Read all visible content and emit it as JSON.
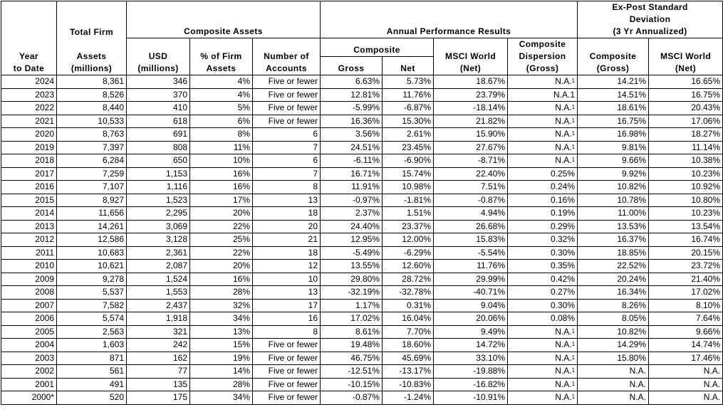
{
  "headers": {
    "total_firm": "Total Firm",
    "composite_assets": "Composite Assets",
    "annual_performance": "Annual Performance Results",
    "ex_post_line1": "Ex-Post Standard",
    "ex_post_line2": "Deviation",
    "ex_post_line3": "(3 Yr Annualized)",
    "year_line1": "Year",
    "year_line2": "to Date",
    "assets_line1": "Assets",
    "assets_line2": "(millions)",
    "usd_line1": "USD",
    "usd_line2": "(millions)",
    "pct_line1": "% of Firm",
    "pct_line2": "Assets",
    "accounts_line1": "Number of",
    "accounts_line2": "Accounts",
    "composite": "Composite",
    "gross": "Gross",
    "net": "Net",
    "msci_line1": "MSCI World",
    "msci_line2": "(Net)",
    "dispersion_line1": "Composite",
    "dispersion_line2": "Dispersion",
    "dispersion_line3": "(Gross)",
    "sd_comp_line1": "Composite",
    "sd_comp_line2": "(Gross)",
    "sd_msci_line1": "MSCI World",
    "sd_msci_line2": "(Net)"
  },
  "rows": [
    {
      "year": "2024",
      "assets": "8,361",
      "usd": "346",
      "pct": "4%",
      "accounts": "Five or fewer",
      "gross": "6.63%",
      "net": "5.73%",
      "msci": "18.67%",
      "dispersion": "N.A.",
      "disp_note": "1",
      "sd_comp": "14.21%",
      "sd_msci": "16.65%"
    },
    {
      "year": "2023",
      "assets": "8,526",
      "usd": "370",
      "pct": "4%",
      "accounts": "Five or fewer",
      "gross": "12.81%",
      "net": "11.76%",
      "msci": "23.79%",
      "dispersion": "N.A.1",
      "disp_note": "",
      "sd_comp": "14.51%",
      "sd_msci": "16.75%"
    },
    {
      "year": "2022",
      "assets": "8,440",
      "usd": "410",
      "pct": "5%",
      "accounts": "Five or fewer",
      "gross": "-5.99%",
      "net": "-6.87%",
      "msci": "-18.14%",
      "dispersion": "N.A.",
      "disp_note": "1",
      "sd_comp": "18.61%",
      "sd_msci": "20.43%"
    },
    {
      "year": "2021",
      "assets": "10,533",
      "usd": "618",
      "pct": "6%",
      "accounts": "Five or fewer",
      "gross": "16.36%",
      "net": "15.30%",
      "msci": "21.82%",
      "dispersion": "N.A.",
      "disp_note": "1",
      "sd_comp": "16.75%",
      "sd_msci": "17.06%"
    },
    {
      "year": "2020",
      "assets": "8,763",
      "usd": "691",
      "pct": "8%",
      "accounts": "6",
      "gross": "3.56%",
      "net": "2.61%",
      "msci": "15.90%",
      "dispersion": "N.A.",
      "disp_note": "1",
      "sd_comp": "16.98%",
      "sd_msci": "18.27%"
    },
    {
      "year": "2019",
      "assets": "7,397",
      "usd": "808",
      "pct": "11%",
      "accounts": "7",
      "gross": "24.51%",
      "net": "23.45%",
      "msci": "27.67%",
      "dispersion": "N.A.",
      "disp_note": "1",
      "sd_comp": "9.81%",
      "sd_msci": "11.14%"
    },
    {
      "year": "2018",
      "assets": "6,284",
      "usd": "650",
      "pct": "10%",
      "accounts": "6",
      "gross": "-6.11%",
      "net": "-6.90%",
      "msci": "-8.71%",
      "dispersion": "N.A.",
      "disp_note": "1",
      "sd_comp": "9.66%",
      "sd_msci": "10.38%"
    },
    {
      "year": "2017",
      "assets": "7,259",
      "usd": "1,153",
      "pct": "16%",
      "accounts": "7",
      "gross": "16.71%",
      "net": "15.74%",
      "msci": "22.40%",
      "dispersion": "0.25%",
      "disp_note": "",
      "sd_comp": "9.92%",
      "sd_msci": "10.23%"
    },
    {
      "year": "2016",
      "assets": "7,107",
      "usd": "1,116",
      "pct": "16%",
      "accounts": "8",
      "gross": "11.91%",
      "net": "10.98%",
      "msci": "7.51%",
      "dispersion": "0.24%",
      "disp_note": "",
      "sd_comp": "10.82%",
      "sd_msci": "10.92%"
    },
    {
      "year": "2015",
      "assets": "8,927",
      "usd": "1,523",
      "pct": "17%",
      "accounts": "13",
      "gross": "-0.97%",
      "net": "-1.81%",
      "msci": "-0.87%",
      "dispersion": "0.16%",
      "disp_note": "",
      "sd_comp": "10.78%",
      "sd_msci": "10.80%"
    },
    {
      "year": "2014",
      "assets": "11,656",
      "usd": "2,295",
      "pct": "20%",
      "accounts": "18",
      "gross": "2.37%",
      "net": "1.51%",
      "msci": "4.94%",
      "dispersion": "0.19%",
      "disp_note": "",
      "sd_comp": "11.00%",
      "sd_msci": "10.23%"
    },
    {
      "year": "2013",
      "assets": "14,261",
      "usd": "3,069",
      "pct": "22%",
      "accounts": "20",
      "gross": "24.40%",
      "net": "23.37%",
      "msci": "26.68%",
      "dispersion": "0.29%",
      "disp_note": "",
      "sd_comp": "13.53%",
      "sd_msci": "13.54%"
    },
    {
      "year": "2012",
      "assets": "12,586",
      "usd": "3,128",
      "pct": "25%",
      "accounts": "21",
      "gross": "12.95%",
      "net": "12.00%",
      "msci": "15.83%",
      "dispersion": "0.32%",
      "disp_note": "",
      "sd_comp": "16.37%",
      "sd_msci": "16.74%"
    },
    {
      "year": "2011",
      "assets": "10,683",
      "usd": "2,361",
      "pct": "22%",
      "accounts": "18",
      "gross": "-5.49%",
      "net": "-6.29%",
      "msci": "-5.54%",
      "dispersion": "0.30%",
      "disp_note": "",
      "sd_comp": "18.85%",
      "sd_msci": "20.15%"
    },
    {
      "year": "2010",
      "assets": "10,621",
      "usd": "2,087",
      "pct": "20%",
      "accounts": "12",
      "gross": "13.55%",
      "net": "12.60%",
      "msci": "11.76%",
      "dispersion": "0.35%",
      "disp_note": "",
      "sd_comp": "22.52%",
      "sd_msci": "23.72%"
    },
    {
      "year": "2009",
      "assets": "9,278",
      "usd": "1,524",
      "pct": "16%",
      "accounts": "10",
      "gross": "29.80%",
      "net": "28.72%",
      "msci": "29.99%",
      "dispersion": "0.42%",
      "disp_note": "",
      "sd_comp": "20.24%",
      "sd_msci": "21.40%"
    },
    {
      "year": "2008",
      "assets": "5,537",
      "usd": "1,553",
      "pct": "28%",
      "accounts": "13",
      "gross": "-32.19%",
      "net": "-32.78%",
      "msci": "-40.71%",
      "dispersion": "0.27%",
      "disp_note": "",
      "sd_comp": "16.34%",
      "sd_msci": "17.02%"
    },
    {
      "year": "2007",
      "assets": "7,582",
      "usd": "2,437",
      "pct": "32%",
      "accounts": "17",
      "gross": "1.17%",
      "net": "0.31%",
      "msci": "9.04%",
      "dispersion": "0.30%",
      "disp_note": "",
      "sd_comp": "8.26%",
      "sd_msci": "8.10%"
    },
    {
      "year": "2006",
      "assets": "5,574",
      "usd": "1,918",
      "pct": "34%",
      "accounts": "16",
      "gross": "17.02%",
      "net": "16.04%",
      "msci": "20.06%",
      "dispersion": "0.08%",
      "disp_note": "",
      "sd_comp": "8.05%",
      "sd_msci": "7.64%"
    },
    {
      "year": "2005",
      "assets": "2,563",
      "usd": "321",
      "pct": "13%",
      "accounts": "8",
      "gross": "8.61%",
      "net": "7.70%",
      "msci": "9.49%",
      "dispersion": "N.A.",
      "disp_note": "1",
      "sd_comp": "10.82%",
      "sd_msci": "9.66%"
    },
    {
      "year": "2004",
      "assets": "1,603",
      "usd": "242",
      "pct": "15%",
      "accounts": "Five or fewer",
      "gross": "19.48%",
      "net": "18.60%",
      "msci": "14.72%",
      "dispersion": "N.A.",
      "disp_note": "1",
      "sd_comp": "14.29%",
      "sd_msci": "14.74%"
    },
    {
      "year": "2003",
      "assets": "871",
      "usd": "162",
      "pct": "19%",
      "accounts": "Five or fewer",
      "gross": "46.75%",
      "net": "45.69%",
      "msci": "33.10%",
      "dispersion": "N.A.",
      "disp_note": "1",
      "sd_comp": "15.80%",
      "sd_msci": "17.46%"
    },
    {
      "year": "2002",
      "assets": "561",
      "usd": "77",
      "pct": "14%",
      "accounts": "Five or fewer",
      "gross": "-12.51%",
      "net": "-13.17%",
      "msci": "-19.88%",
      "dispersion": "N.A.",
      "disp_note": "1",
      "sd_comp": "N.A.",
      "sd_msci": "N.A."
    },
    {
      "year": "2001",
      "assets": "491",
      "usd": "135",
      "pct": "28%",
      "accounts": "Five or fewer",
      "gross": "-10.15%",
      "net": "-10.83%",
      "msci": "-16.82%",
      "dispersion": "N.A.",
      "disp_note": "1",
      "sd_comp": "N.A.",
      "sd_msci": "N.A."
    },
    {
      "year": "2000*",
      "assets": "520",
      "usd": "175",
      "pct": "34%",
      "accounts": "Five or fewer",
      "gross": "-0.87%",
      "net": "-1.24%",
      "msci": "-10.91%",
      "dispersion": "N.A.",
      "disp_note": "1",
      "sd_comp": "N.A.",
      "sd_msci": "N.A."
    }
  ]
}
